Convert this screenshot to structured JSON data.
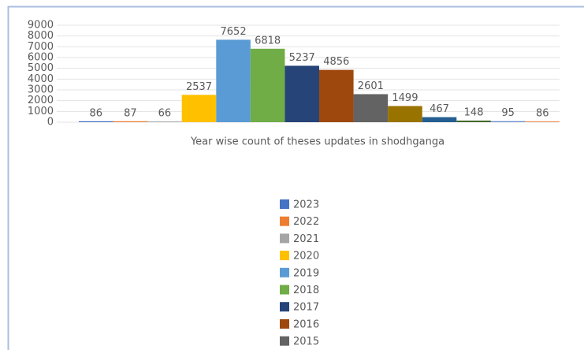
{
  "chart_data": {
    "type": "bar",
    "x_label": "Year wise count of theses updates in shodhganga",
    "ylim": [
      0,
      9000
    ],
    "yticks": [
      0,
      1000,
      2000,
      3000,
      4000,
      5000,
      6000,
      7000,
      8000,
      9000
    ],
    "grid": true,
    "legend": "bottom",
    "series": [
      {
        "name": "2023",
        "color": "#4472c4",
        "values": [
          86
        ]
      },
      {
        "name": "2022",
        "color": "#ed7d31",
        "values": [
          87
        ]
      },
      {
        "name": "2021",
        "color": "#a5a5a5",
        "values": [
          66
        ]
      },
      {
        "name": "2020",
        "color": "#ffc000",
        "values": [
          2537
        ]
      },
      {
        "name": "2019",
        "color": "#5b9bd5",
        "values": [
          7652
        ]
      },
      {
        "name": "2018",
        "color": "#70ad47",
        "values": [
          6818
        ]
      },
      {
        "name": "2017",
        "color": "#264478",
        "values": [
          5237
        ]
      },
      {
        "name": "2016",
        "color": "#9e480e",
        "values": [
          4856
        ]
      },
      {
        "name": "2015",
        "color": "#636363",
        "values": [
          2601
        ]
      },
      {
        "name": null,
        "color": "#997300",
        "values": [
          1499
        ]
      },
      {
        "name": null,
        "color": "#255e91",
        "values": [
          467
        ]
      },
      {
        "name": null,
        "color": "#43682b",
        "values": [
          148
        ]
      },
      {
        "name": null,
        "color": "#698ed0",
        "values": [
          95
        ]
      },
      {
        "name": null,
        "color": "#f1975a",
        "values": [
          86
        ]
      }
    ]
  }
}
